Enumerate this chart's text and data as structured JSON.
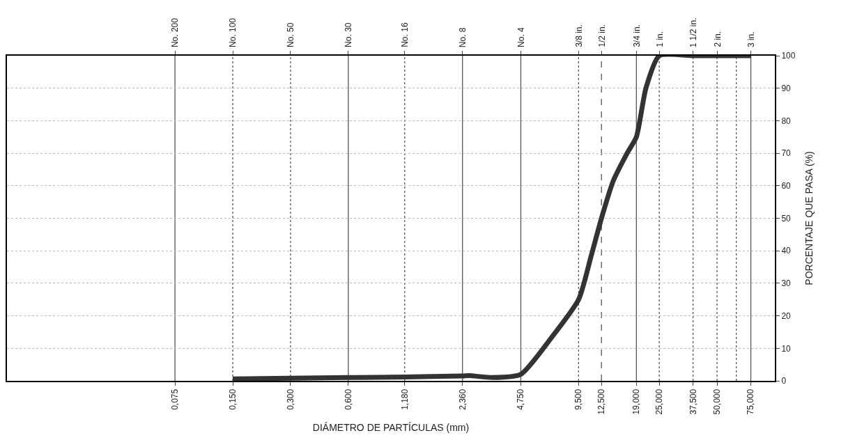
{
  "chart_data": {
    "type": "line",
    "xlabel": "DIÁMETRO DE PARTÍCULAS (mm)",
    "ylabel": "PORCENTAJE QUE PASA (%)",
    "log": "x",
    "grid": "y",
    "marker": "none",
    "line_style": "solid",
    "xlim": [
      0.01,
      100
    ],
    "ylim": [
      0,
      100
    ],
    "xticks": [
      {
        "value": 0.075,
        "label": "0,075"
      },
      {
        "value": 0.15,
        "label": "0,150"
      },
      {
        "value": 0.3,
        "label": "0,300"
      },
      {
        "value": 0.6,
        "label": "0,600"
      },
      {
        "value": 1.18,
        "label": "1,180"
      },
      {
        "value": 2.36,
        "label": "2,360"
      },
      {
        "value": 4.75,
        "label": "4,750"
      },
      {
        "value": 9.5,
        "label": "9,500"
      },
      {
        "value": 12.5,
        "label": "12,500"
      },
      {
        "value": 19,
        "label": "19,000"
      },
      {
        "value": 25,
        "label": "25,000"
      },
      {
        "value": 37.5,
        "label": "37,500"
      },
      {
        "value": 50,
        "label": "50,000"
      },
      {
        "value": 75,
        "label": "75,000"
      }
    ],
    "ref_lines": [
      {
        "axis": "x",
        "value": 0.075,
        "label": "No. 200",
        "line_style": "solid"
      },
      {
        "axis": "x",
        "value": 0.15,
        "label": "No. 100",
        "line_style": "dotted"
      },
      {
        "axis": "x",
        "value": 0.3,
        "label": "No. 50",
        "line_style": "dotted"
      },
      {
        "axis": "x",
        "value": 0.6,
        "label": "No. 30",
        "line_style": "solid"
      },
      {
        "axis": "x",
        "value": 1.18,
        "label": "No. 16",
        "line_style": "dotted"
      },
      {
        "axis": "x",
        "value": 2.36,
        "label": "No. 8",
        "line_style": "solid"
      },
      {
        "axis": "x",
        "value": 4.75,
        "label": "No. 4",
        "line_style": "solid"
      },
      {
        "axis": "x",
        "value": 9.5,
        "label": "3/8 in.",
        "line_style": "dotted"
      },
      {
        "axis": "x",
        "value": 12.5,
        "label": "1/2 in.",
        "line_style": "dashed"
      },
      {
        "axis": "x",
        "value": 19,
        "label": "3/4 in.",
        "line_style": "solid"
      },
      {
        "axis": "x",
        "value": 25,
        "label": "1 in.",
        "line_style": "dotted"
      },
      {
        "axis": "x",
        "value": 37.5,
        "label": "1 1/2 in.",
        "line_style": "dotted"
      },
      {
        "axis": "x",
        "value": 50,
        "label": "2 in.",
        "line_style": "dotted"
      },
      {
        "axis": "x",
        "value": 63,
        "label": null,
        "line_style": "dotted"
      },
      {
        "axis": "x",
        "value": 75,
        "label": "3 in.",
        "line_style": "solid"
      }
    ],
    "yticks": [
      0,
      10,
      20,
      30,
      40,
      50,
      60,
      70,
      80,
      90,
      100
    ],
    "series": [
      {
        "color": "#333333",
        "x": [
          0.15,
          0.3,
          0.6,
          1.18,
          2.36,
          2.56,
          3.4,
          4.75,
          6.8,
          9.5,
          11,
          12.5,
          14.4,
          17,
          19,
          21.3,
          25,
          37.5,
          50,
          75
        ],
        "values": [
          0.6,
          0.8,
          1.0,
          1.2,
          1.5,
          1.6,
          1.0,
          2,
          13,
          25,
          38,
          50,
          61.5,
          70,
          75,
          90,
          100,
          100,
          100,
          100
        ]
      }
    ]
  }
}
